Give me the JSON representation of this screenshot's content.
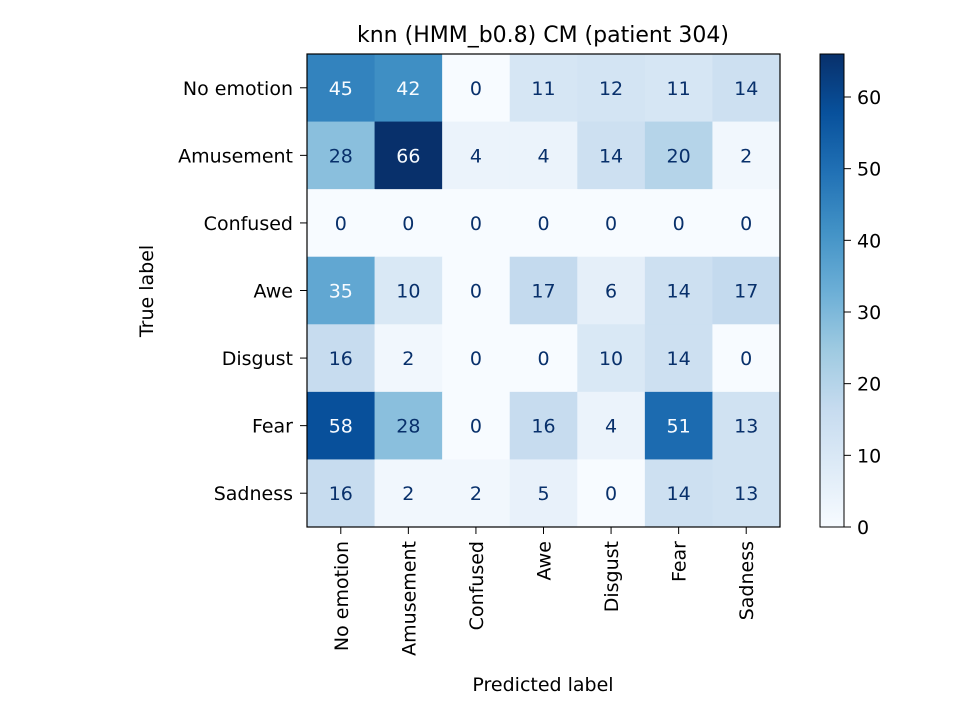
{
  "chart_data": {
    "type": "heatmap",
    "title": "knn (HMM_b0.8) CM (patient 304)",
    "xlabel": "Predicted label",
    "ylabel": "True label",
    "x_labels": [
      "No emotion",
      "Amusement",
      "Confused",
      "Awe",
      "Disgust",
      "Fear",
      "Sadness"
    ],
    "y_labels": [
      "No emotion",
      "Amusement",
      "Confused",
      "Awe",
      "Disgust",
      "Fear",
      "Sadness"
    ],
    "matrix": [
      [
        45,
        42,
        0,
        11,
        12,
        11,
        14
      ],
      [
        28,
        66,
        4,
        4,
        14,
        20,
        2
      ],
      [
        0,
        0,
        0,
        0,
        0,
        0,
        0
      ],
      [
        35,
        10,
        0,
        17,
        6,
        14,
        17
      ],
      [
        16,
        2,
        0,
        0,
        10,
        14,
        0
      ],
      [
        58,
        28,
        0,
        16,
        4,
        51,
        13
      ],
      [
        16,
        2,
        2,
        5,
        0,
        14,
        13
      ]
    ],
    "colormap": "Blues",
    "vmin": 0,
    "vmax": 66,
    "colorbar_ticks": [
      0,
      10,
      20,
      30,
      40,
      50,
      60
    ],
    "grid": false
  }
}
